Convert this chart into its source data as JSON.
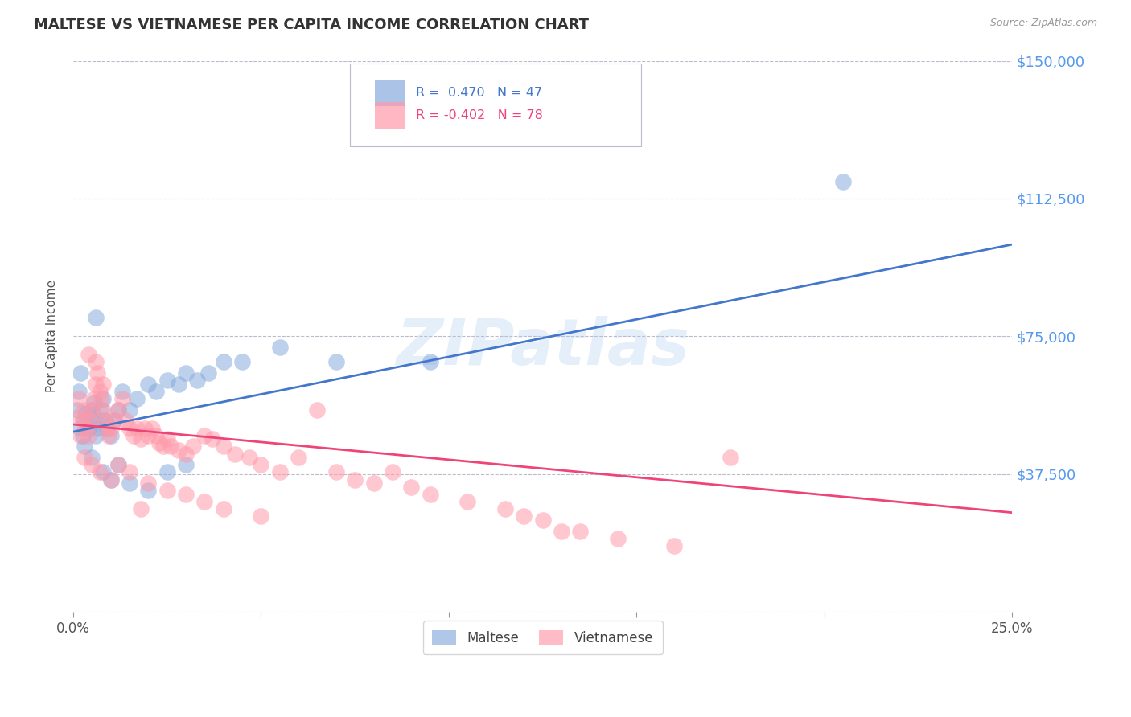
{
  "title": "MALTESE VS VIETNAMESE PER CAPITA INCOME CORRELATION CHART",
  "source": "Source: ZipAtlas.com",
  "ylabel": "Per Capita Income",
  "yticks": [
    0,
    37500,
    75000,
    112500,
    150000
  ],
  "ytick_labels": [
    "",
    "$37,500",
    "$75,000",
    "$112,500",
    "$150,000"
  ],
  "xlim": [
    0.0,
    25.0
  ],
  "ylim": [
    0,
    150000
  ],
  "blue_color": "#88AADD",
  "pink_color": "#FF99AA",
  "blue_line_color": "#4477CC",
  "pink_line_color": "#EE4477",
  "ytick_color": "#5599EE",
  "watermark_color": "#AACCEE",
  "background_color": "#FFFFFF",
  "grid_color": "#BBBBCC",
  "legend_label1": "Maltese",
  "legend_label2": "Vietnamese",
  "R_blue": 0.47,
  "N_blue": 47,
  "R_pink": -0.402,
  "N_pink": 78,
  "blue_line_x0": 0.0,
  "blue_line_y0": 49000,
  "blue_line_x1": 25.0,
  "blue_line_y1": 100000,
  "pink_line_x0": 0.0,
  "pink_line_y0": 51000,
  "pink_line_x1": 25.0,
  "pink_line_y1": 27000,
  "blue_scatter_x": [
    0.1,
    0.15,
    0.2,
    0.25,
    0.3,
    0.35,
    0.4,
    0.45,
    0.5,
    0.55,
    0.6,
    0.65,
    0.7,
    0.75,
    0.8,
    0.85,
    0.9,
    1.0,
    1.1,
    1.2,
    1.3,
    1.5,
    1.7,
    2.0,
    2.2,
    2.5,
    2.8,
    3.0,
    3.3,
    3.6,
    4.0,
    0.3,
    0.5,
    0.8,
    1.0,
    1.2,
    1.5,
    2.0,
    2.5,
    3.0,
    4.5,
    5.5,
    7.0,
    9.5,
    20.5,
    0.2,
    0.6
  ],
  "blue_scatter_y": [
    55000,
    60000,
    50000,
    48000,
    52000,
    54000,
    50000,
    53000,
    55000,
    57000,
    48000,
    50000,
    52000,
    55000,
    58000,
    52000,
    50000,
    48000,
    52000,
    55000,
    60000,
    55000,
    58000,
    62000,
    60000,
    63000,
    62000,
    65000,
    63000,
    65000,
    68000,
    45000,
    42000,
    38000,
    36000,
    40000,
    35000,
    33000,
    38000,
    40000,
    68000,
    72000,
    68000,
    68000,
    117000,
    65000,
    80000
  ],
  "pink_scatter_x": [
    0.1,
    0.15,
    0.2,
    0.25,
    0.3,
    0.35,
    0.4,
    0.45,
    0.5,
    0.55,
    0.6,
    0.65,
    0.7,
    0.75,
    0.8,
    0.85,
    0.9,
    0.95,
    1.0,
    1.1,
    1.2,
    1.3,
    1.4,
    1.5,
    1.6,
    1.7,
    1.8,
    1.9,
    2.0,
    2.1,
    2.2,
    2.3,
    2.4,
    2.5,
    2.6,
    2.8,
    3.0,
    3.2,
    3.5,
    3.7,
    4.0,
    4.3,
    4.7,
    5.0,
    5.5,
    6.0,
    7.0,
    7.5,
    8.0,
    9.0,
    9.5,
    10.5,
    11.5,
    12.0,
    13.5,
    14.5,
    16.0,
    0.3,
    0.5,
    0.7,
    1.0,
    1.2,
    1.5,
    2.0,
    2.5,
    3.0,
    3.5,
    4.0,
    5.0,
    6.5,
    8.5,
    17.5,
    12.5,
    13.0,
    0.4,
    0.6,
    0.8,
    1.8
  ],
  "pink_scatter_y": [
    53000,
    58000,
    48000,
    52000,
    55000,
    50000,
    48000,
    52000,
    55000,
    58000,
    62000,
    65000,
    60000,
    58000,
    55000,
    52000,
    50000,
    48000,
    50000,
    52000,
    55000,
    58000,
    52000,
    50000,
    48000,
    50000,
    47000,
    50000,
    48000,
    50000,
    48000,
    46000,
    45000,
    47000,
    45000,
    44000,
    43000,
    45000,
    48000,
    47000,
    45000,
    43000,
    42000,
    40000,
    38000,
    42000,
    38000,
    36000,
    35000,
    34000,
    32000,
    30000,
    28000,
    26000,
    22000,
    20000,
    18000,
    42000,
    40000,
    38000,
    36000,
    40000,
    38000,
    35000,
    33000,
    32000,
    30000,
    28000,
    26000,
    55000,
    38000,
    42000,
    25000,
    22000,
    70000,
    68000,
    62000,
    28000
  ]
}
